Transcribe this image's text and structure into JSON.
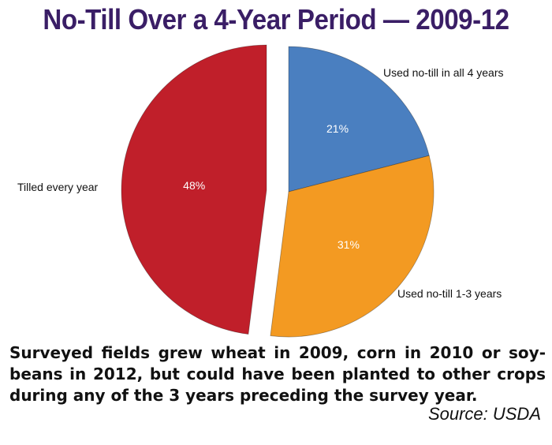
{
  "chart_data": {
    "type": "pie",
    "title": "No-Till Over a 4-Year Period — 2009-12",
    "slices": [
      {
        "label": "Used no-till in all 4 years",
        "value": 21,
        "value_label": "21%",
        "color": "#4a7fc0"
      },
      {
        "label": "Used no-till 1-3 years",
        "value": 31,
        "value_label": "31%",
        "color": "#f39a22"
      },
      {
        "label": "Tilled every year",
        "value": 48,
        "value_label": "48%",
        "color": "#c01f2a",
        "exploded": true
      }
    ],
    "start_angle": "12 o'clock",
    "direction": "clockwise"
  },
  "caption": "Surveyed fields grew wheat in 2009, corn in 2010 or soy-beans in 2012, but could have been planted to other crops during any of the 3 years preceding the survey year.",
  "source": "Source: USDA"
}
